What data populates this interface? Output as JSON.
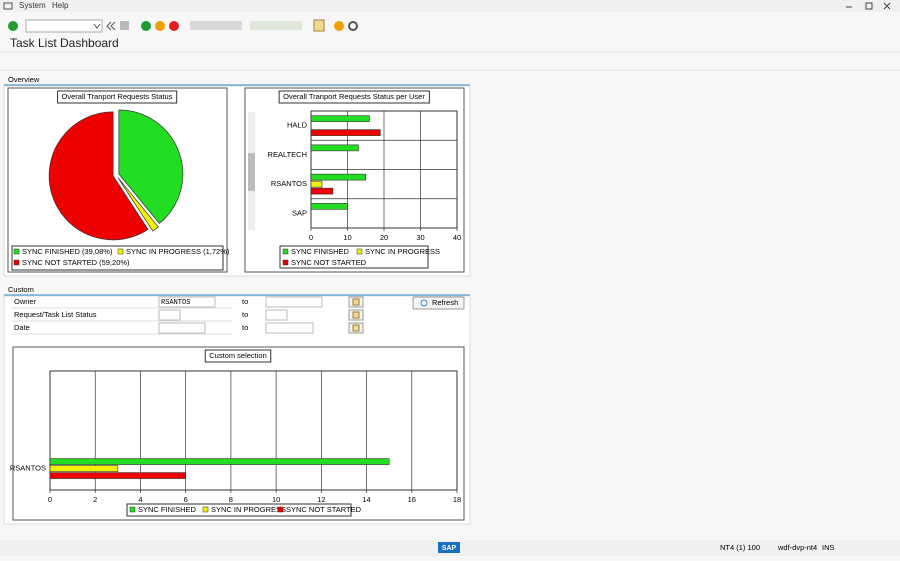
{
  "menu": [
    "System",
    "Help"
  ],
  "title": "Task List Dashboard",
  "sections": {
    "overview": "Overview",
    "custom": "Custom"
  },
  "form": {
    "rows": [
      {
        "label": "Owner",
        "from": "RSANTOS",
        "to_label": "to"
      },
      {
        "label": "Request/Task List Status",
        "from": "",
        "to_label": "to"
      },
      {
        "label": "Date",
        "from": "",
        "to_label": "to"
      }
    ],
    "button": "Refresh"
  },
  "status_bar": {
    "logo": "SAP",
    "session": "NT4 (1) 100",
    "server": "wdf-dvp-nt4",
    "mode": "INS"
  },
  "chart_data": [
    {
      "type": "pie",
      "title": "Overall Tranport Requests Status",
      "categories": [
        "SYNC FINISHED (39,08%)",
        "SYNC IN PROGRESS (1,72%)",
        "SYNC NOT STARTED (59,20%)"
      ],
      "values": [
        39.08,
        1.72,
        59.2
      ],
      "colors": [
        "#22dd22",
        "#f2f200",
        "#ee0000"
      ]
    },
    {
      "type": "hbar",
      "title": "Overall Tranport Requests Status per User",
      "categories": [
        "HALD",
        "REALTECH",
        "RSANTOS",
        "SAP"
      ],
      "series": [
        {
          "name": "SYNC FINISHED",
          "color": "#22dd22",
          "values": [
            16,
            13,
            15,
            10
          ]
        },
        {
          "name": "SYNC IN PROGRESS",
          "color": "#f2f200",
          "values": [
            null,
            null,
            3,
            null
          ]
        },
        {
          "name": "SYNC NOT STARTED",
          "color": "#ee0000",
          "values": [
            19,
            null,
            6,
            null
          ]
        }
      ],
      "xlim": [
        0,
        40
      ],
      "xticks": [
        0,
        10,
        20,
        30,
        40
      ]
    },
    {
      "type": "hbar",
      "title": "Custom selection",
      "categories": [
        "RSANTOS"
      ],
      "series": [
        {
          "name": "SYNC FINISHED",
          "color": "#22dd22",
          "values": [
            15
          ]
        },
        {
          "name": "SYNC IN PROGRESS",
          "color": "#f2f200",
          "values": [
            3
          ]
        },
        {
          "name": "SYNC NOT STARTED",
          "color": "#ee0000",
          "values": [
            6
          ]
        }
      ],
      "xlim": [
        0,
        18
      ],
      "xticks": [
        0,
        2,
        4,
        6,
        8,
        10,
        12,
        14,
        16,
        18
      ]
    }
  ]
}
